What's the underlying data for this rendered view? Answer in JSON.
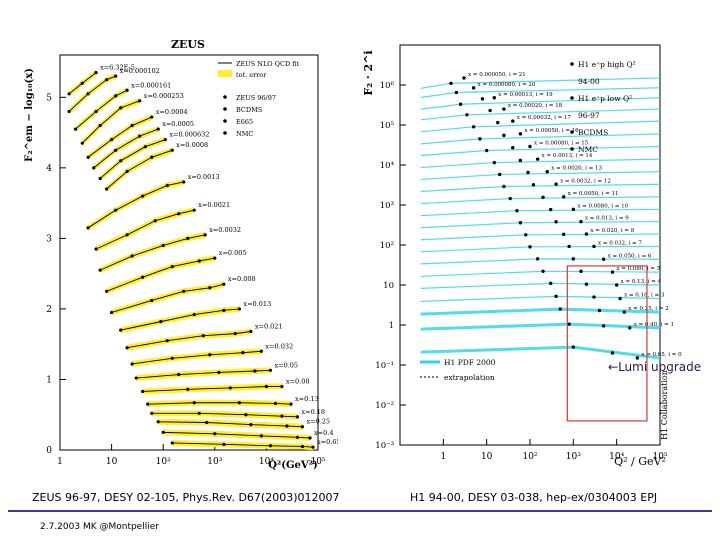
{
  "chart_data": [
    {
      "type": "scatter",
      "title": "ZEUS",
      "xlabel": "Q²(GeV²)",
      "ylabel": "F₂^em − log₁₀(x)",
      "x_scale": "log",
      "xlim": [
        1,
        100000
      ],
      "ylim": [
        0,
        5.6
      ],
      "x_ticks": [
        "1",
        "10",
        "10²",
        "10³",
        "10⁴",
        "10⁵"
      ],
      "y_ticks": [
        "0",
        "1",
        "2",
        "3",
        "4",
        "5"
      ],
      "legend": {
        "position": "top-right",
        "entries": [
          "ZEUS NLO QCD fit",
          "tot. error",
          "ZEUS 96/97",
          "BCDMS",
          "E665",
          "NMC"
        ]
      },
      "x_bins": [
        "x=6.32E-5",
        "x=0.000102",
        "x=0.000161",
        "x=0.000253",
        "x=0.0004",
        "x=0.0005",
        "x=0.000632",
        "x=0.0008",
        "x=0.0013",
        "x=0.0021",
        "x=0.0032",
        "x=0.005",
        "x=0.008",
        "x=0.013",
        "x=0.021",
        "x=0.032",
        "x=0.05",
        "x=0.08",
        "x=0.13",
        "x=0.18",
        "x=0.25",
        "x=0.4",
        "x=0.65"
      ],
      "series": [
        {
          "name": "x=6.32E-5",
          "values": [
            [
              1.5,
              5.05
            ],
            [
              2.7,
              5.2
            ],
            [
              5,
              5.35
            ]
          ]
        },
        {
          "name": "x=0.000102",
          "values": [
            [
              1.5,
              4.8
            ],
            [
              3.5,
              5.05
            ],
            [
              8,
              5.25
            ],
            [
              12,
              5.3
            ]
          ]
        },
        {
          "name": "x=0.000161",
          "values": [
            [
              2,
              4.55
            ],
            [
              5,
              4.8
            ],
            [
              12,
              5.02
            ],
            [
              20,
              5.1
            ]
          ]
        },
        {
          "name": "x=0.000253",
          "values": [
            [
              2.7,
              4.35
            ],
            [
              6,
              4.6
            ],
            [
              15,
              4.85
            ],
            [
              35,
              4.95
            ]
          ]
        },
        {
          "name": "x=0.0004",
          "values": [
            [
              3.5,
              4.15
            ],
            [
              10,
              4.4
            ],
            [
              25,
              4.6
            ],
            [
              60,
              4.72
            ]
          ]
        },
        {
          "name": "x=0.0005",
          "values": [
            [
              4.5,
              4.0
            ],
            [
              12,
              4.25
            ],
            [
              35,
              4.45
            ],
            [
              80,
              4.55
            ]
          ]
        },
        {
          "name": "x=0.000632",
          "values": [
            [
              6,
              3.85
            ],
            [
              15,
              4.1
            ],
            [
              45,
              4.3
            ],
            [
              110,
              4.4
            ]
          ]
        },
        {
          "name": "x=0.0008",
          "values": [
            [
              8,
              3.7
            ],
            [
              20,
              3.95
            ],
            [
              60,
              4.15
            ],
            [
              150,
              4.25
            ]
          ]
        },
        {
          "name": "x=0.0013",
          "values": [
            [
              3.5,
              3.15
            ],
            [
              12,
              3.4
            ],
            [
              40,
              3.6
            ],
            [
              120,
              3.75
            ],
            [
              250,
              3.8
            ]
          ]
        },
        {
          "name": "x=0.0021",
          "values": [
            [
              5,
              2.85
            ],
            [
              20,
              3.05
            ],
            [
              70,
              3.25
            ],
            [
              200,
              3.35
            ],
            [
              400,
              3.4
            ]
          ]
        },
        {
          "name": "x=0.0032",
          "values": [
            [
              6,
              2.55
            ],
            [
              25,
              2.75
            ],
            [
              100,
              2.9
            ],
            [
              300,
              3.0
            ],
            [
              650,
              3.05
            ]
          ]
        },
        {
          "name": "x=0.005",
          "values": [
            [
              8,
              2.25
            ],
            [
              40,
              2.45
            ],
            [
              150,
              2.6
            ],
            [
              500,
              2.68
            ],
            [
              1000,
              2.72
            ]
          ]
        },
        {
          "name": "x=0.008",
          "values": [
            [
              10,
              1.95
            ],
            [
              60,
              2.12
            ],
            [
              250,
              2.25
            ],
            [
              800,
              2.3
            ],
            [
              1500,
              2.35
            ]
          ]
        },
        {
          "name": "x=0.013",
          "values": [
            [
              15,
              1.7
            ],
            [
              90,
              1.82
            ],
            [
              400,
              1.92
            ],
            [
              1500,
              1.98
            ],
            [
              3000,
              2.0
            ]
          ]
        },
        {
          "name": "x=0.021",
          "values": [
            [
              20,
              1.45
            ],
            [
              120,
              1.55
            ],
            [
              600,
              1.62
            ],
            [
              2500,
              1.65
            ],
            [
              5000,
              1.68
            ]
          ]
        },
        {
          "name": "x=0.032",
          "values": [
            [
              25,
              1.22
            ],
            [
              150,
              1.3
            ],
            [
              800,
              1.35
            ],
            [
              3500,
              1.38
            ],
            [
              8000,
              1.4
            ]
          ]
        },
        {
          "name": "x=0.05",
          "values": [
            [
              30,
              1.02
            ],
            [
              200,
              1.07
            ],
            [
              1200,
              1.1
            ],
            [
              6000,
              1.12
            ],
            [
              12000,
              1.13
            ]
          ]
        },
        {
          "name": "x=0.08",
          "values": [
            [
              40,
              0.83
            ],
            [
              300,
              0.86
            ],
            [
              2000,
              0.88
            ],
            [
              10000,
              0.9
            ],
            [
              20000,
              0.9
            ]
          ]
        },
        {
          "name": "x=0.13",
          "values": [
            [
              50,
              0.65
            ],
            [
              400,
              0.67
            ],
            [
              3000,
              0.67
            ],
            [
              15000,
              0.66
            ],
            [
              30000,
              0.65
            ]
          ]
        },
        {
          "name": "x=0.18",
          "values": [
            [
              60,
              0.52
            ],
            [
              500,
              0.52
            ],
            [
              4000,
              0.5
            ],
            [
              20000,
              0.48
            ],
            [
              40000,
              0.47
            ]
          ]
        },
        {
          "name": "x=0.25",
          "values": [
            [
              80,
              0.4
            ],
            [
              700,
              0.39
            ],
            [
              5000,
              0.36
            ],
            [
              25000,
              0.34
            ],
            [
              50000,
              0.33
            ]
          ]
        },
        {
          "name": "x=0.4",
          "values": [
            [
              100,
              0.25
            ],
            [
              1000,
              0.23
            ],
            [
              8000,
              0.2
            ],
            [
              40000,
              0.18
            ],
            [
              70000,
              0.17
            ]
          ]
        },
        {
          "name": "x=0.65",
          "values": [
            [
              150,
              0.1
            ],
            [
              1500,
              0.08
            ],
            [
              12000,
              0.06
            ],
            [
              50000,
              0.05
            ],
            [
              80000,
              0.04
            ]
          ]
        }
      ]
    },
    {
      "type": "scatter",
      "title": "",
      "xlabel": "Q² / GeV²",
      "ylabel": "F₂ · 2^i",
      "x_scale": "log",
      "y_scale": "log",
      "xlim": [
        0.1,
        100000
      ],
      "ylim": [
        0.001,
        10000000
      ],
      "x_ticks": [
        "1",
        "10",
        "10²",
        "10³",
        "10⁴",
        "10⁵"
      ],
      "y_ticks": [
        "10⁻³",
        "10⁻²",
        "10⁻¹",
        "1",
        "10",
        "10²",
        "10³",
        "10⁴",
        "10⁵",
        "10⁶"
      ],
      "legend": {
        "position": "top-right",
        "entries": [
          "H1 e⁺p high Q²",
          "94-00",
          "H1 e⁺p low Q²",
          "96-97",
          "BCDMS",
          "NMC",
          "H1 PDF 2000",
          "extrapolation"
        ]
      },
      "x_bins": [
        "x = 0.000050, i = 21",
        "x = 0.000080, i = 20",
        "x = 0.00013, i = 19",
        "x = 0.00020, i = 18",
        "x = 0.00032, i = 17",
        "x = 0.00050, i = 16",
        "x = 0.00080, i = 15",
        "x = 0.0013, i = 14",
        "x = 0.0020, i = 13",
        "x = 0.0032, i = 12",
        "x = 0.0050, i = 11",
        "x = 0.0080, i = 10",
        "x = 0.013, i = 9",
        "x = 0.020, i = 8",
        "x = 0.032, i = 7",
        "x = 0.050, i = 6",
        "x = 0.080, i = 5",
        "x = 0.13, i = 4",
        "x = 0.18, i = 3",
        "x = 0.25, i = 2",
        "x = 0.40, i = 1",
        "x = 0.65, i = 0"
      ],
      "series": [
        {
          "name": "x = 0.000050, i = 21",
          "values": [
            [
              1.5,
              1100000
            ],
            [
              3,
              1500000
            ]
          ]
        },
        {
          "name": "x = 0.000080, i = 20",
          "values": [
            [
              2,
              650000
            ],
            [
              5,
              850000
            ]
          ]
        },
        {
          "name": "x = 0.00013, i = 19",
          "values": [
            [
              2.5,
              330000
            ],
            [
              8,
              450000
            ],
            [
              15,
              480000
            ]
          ]
        },
        {
          "name": "x = 0.00020, i = 18",
          "values": [
            [
              3.5,
              180000
            ],
            [
              12,
              230000
            ],
            [
              25,
              250000
            ]
          ]
        },
        {
          "name": "x = 0.00032, i = 17",
          "values": [
            [
              5,
              90000
            ],
            [
              18,
              115000
            ],
            [
              40,
              125000
            ]
          ]
        },
        {
          "name": "x = 0.00050, i = 16",
          "values": [
            [
              7,
              45000
            ],
            [
              25,
              55000
            ],
            [
              60,
              60000
            ]
          ]
        },
        {
          "name": "x = 0.00080, i = 15",
          "values": [
            [
              10,
              23000
            ],
            [
              40,
              27000
            ],
            [
              100,
              29000
            ]
          ]
        },
        {
          "name": "x = 0.0013, i = 14",
          "values": [
            [
              15,
              11500
            ],
            [
              60,
              13000
            ],
            [
              150,
              14000
            ]
          ]
        },
        {
          "name": "x = 0.0020, i = 13",
          "values": [
            [
              20,
              5800
            ],
            [
              90,
              6500
            ],
            [
              250,
              6800
            ]
          ]
        },
        {
          "name": "x = 0.0032, i = 12",
          "values": [
            [
              25,
              2900
            ],
            [
              120,
              3200
            ],
            [
              400,
              3300
            ]
          ]
        },
        {
          "name": "x = 0.0050, i = 11",
          "values": [
            [
              35,
              1450
            ],
            [
              200,
              1550
            ],
            [
              600,
              1600
            ]
          ]
        },
        {
          "name": "x = 0.0080, i = 10",
          "values": [
            [
              50,
              720
            ],
            [
              300,
              770
            ],
            [
              1000,
              780
            ]
          ]
        },
        {
          "name": "x = 0.013, i = 9",
          "values": [
            [
              60,
              360
            ],
            [
              400,
              380
            ],
            [
              1500,
              385
            ]
          ]
        },
        {
          "name": "x = 0.020, i = 8",
          "values": [
            [
              80,
              180
            ],
            [
              600,
              185
            ],
            [
              2000,
              188
            ]
          ]
        },
        {
          "name": "x = 0.032, i = 7",
          "values": [
            [
              100,
              90
            ],
            [
              800,
              92
            ],
            [
              3000,
              92
            ]
          ]
        },
        {
          "name": "x = 0.050, i = 6",
          "values": [
            [
              150,
              45
            ],
            [
              1000,
              45
            ],
            [
              5000,
              44
            ]
          ]
        },
        {
          "name": "x = 0.080, i = 5",
          "values": [
            [
              200,
              22
            ],
            [
              1500,
              22
            ],
            [
              8000,
              21
            ]
          ]
        },
        {
          "name": "x = 0.13, i = 4",
          "values": [
            [
              300,
              11
            ],
            [
              2000,
              10.5
            ],
            [
              10000,
              10
            ]
          ]
        },
        {
          "name": "x = 0.18, i = 3",
          "values": [
            [
              400,
              5.2
            ],
            [
              3000,
              5
            ],
            [
              12000,
              4.6
            ]
          ]
        },
        {
          "name": "x = 0.25, i = 2",
          "values": [
            [
              500,
              2.5
            ],
            [
              4000,
              2.3
            ],
            [
              15000,
              2.1
            ]
          ]
        },
        {
          "name": "x = 0.40, i = 1",
          "values": [
            [
              800,
              1.05
            ],
            [
              5000,
              0.95
            ],
            [
              20000,
              0.85
            ]
          ]
        },
        {
          "name": "x = 0.65, i = 0",
          "values": [
            [
              1000,
              0.28
            ],
            [
              8000,
              0.2
            ],
            [
              30000,
              0.15
            ]
          ]
        }
      ],
      "side_label": "H1 Collaboration"
    }
  ],
  "annotations": {
    "lumi_label": "Lumi upgrade",
    "zeus_reference": "ZEUS 96-97,  DESY 02-105, Phys.Rev. D67(2003)012007",
    "h1_reference": "H1 94-00,  DESY 03-038, hep-ex/0304003 EPJ",
    "footer": "2.7.2003 MK @Montpellier"
  },
  "colors": {
    "data": "#000000",
    "fit_line": "#000000",
    "zeus_error_band": "#ffee33",
    "h1_pdf_band": "#33d6e6",
    "highlight_box": "#d23a3a",
    "footer_rule": "#3b3b9b"
  }
}
